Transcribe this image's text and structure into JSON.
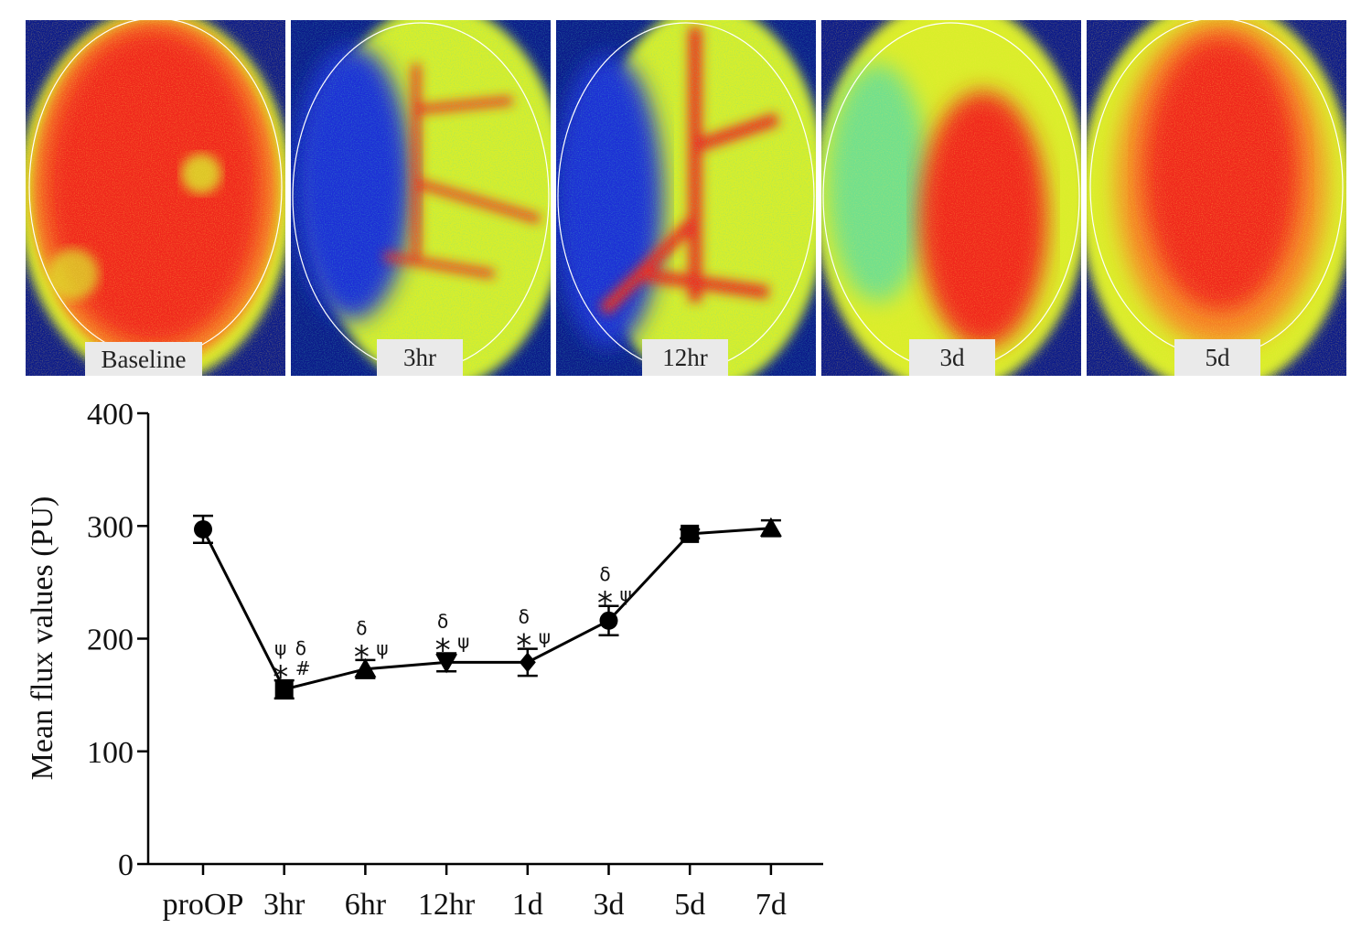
{
  "panels": [
    {
      "label": "Baseline",
      "palette": "hot"
    },
    {
      "label": "3hr",
      "palette": "split"
    },
    {
      "label": "12hr",
      "palette": "split"
    },
    {
      "label": "3d",
      "palette": "mixed"
    },
    {
      "label": "5d",
      "palette": "hot"
    }
  ],
  "colors": {
    "high": "#f0271b",
    "mid_high": "#f58a25",
    "mid": "#d9ee2c",
    "mid_low": "#6fe08d",
    "low": "#1c2fd6",
    "edge": "#0b1a8a",
    "line": "#000000"
  },
  "chart_data": {
    "type": "line",
    "title": "",
    "xlabel": "",
    "ylabel": "Mean flux values (PU)",
    "ylim": [
      0,
      400
    ],
    "yticks": [
      0,
      100,
      200,
      300,
      400
    ],
    "categories": [
      "proOP",
      "3hr",
      "6hr",
      "12hr",
      "1d",
      "3d",
      "5d",
      "7d"
    ],
    "series": [
      {
        "name": "Mean flux",
        "values": [
          297,
          155,
          173,
          179,
          179,
          216,
          293,
          298
        ],
        "errors": [
          12,
          8,
          8,
          8,
          12,
          13,
          4,
          7
        ],
        "markers": [
          "circle",
          "square",
          "triangle-up",
          "triangle-down",
          "diamond",
          "circle",
          "square",
          "triangle-up"
        ]
      }
    ],
    "annotations": [
      {
        "category": "3hr",
        "top": "ψ",
        "side_top": "δ",
        "star": "*",
        "side": "#"
      },
      {
        "category": "6hr",
        "top": "δ",
        "star": "*",
        "side": "ψ"
      },
      {
        "category": "12hr",
        "top": "δ",
        "star": "*",
        "side": "ψ"
      },
      {
        "category": "1d",
        "top": "δ",
        "star": "*",
        "side": "ψ"
      },
      {
        "category": "3d",
        "top": "δ",
        "star": "*",
        "side": "ψ"
      }
    ]
  }
}
